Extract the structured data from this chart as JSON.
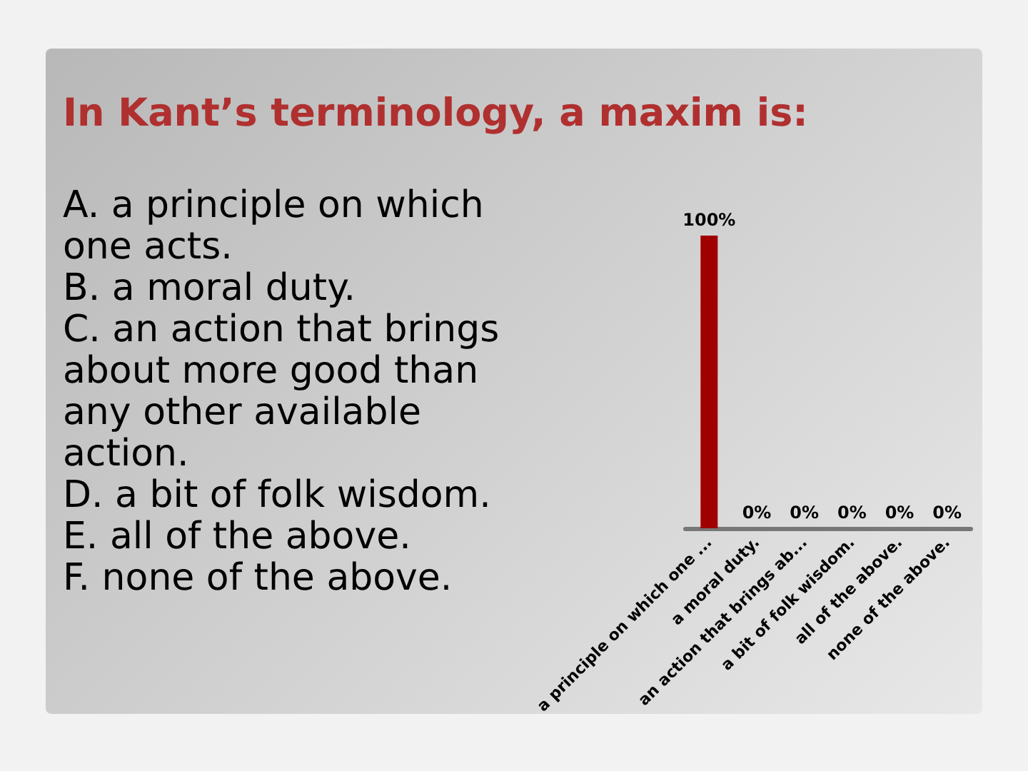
{
  "chart_data": {
    "type": "bar",
    "title": "In Kant’s terminology, a maxim is:",
    "categories": [
      "a principle on which one ...",
      "a moral duty.",
      "an action that brings ab...",
      "a bit of folk wisdom.",
      "all of the above.",
      "none of the above."
    ],
    "values": [
      100,
      0,
      0,
      0,
      0,
      0
    ],
    "color": "#a00000",
    "value_labels": [
      "100%",
      "0%",
      "0%",
      "0%",
      "0%",
      "0%"
    ],
    "annotations": [
      "A. a principle on which one acts.",
      "B. a moral duty.",
      "C. an action that brings about more good than any other available action.",
      "D. a bit of folk wisdom.",
      "E. all of the above.",
      "F. none of the above."
    ],
    "grid": false
  }
}
